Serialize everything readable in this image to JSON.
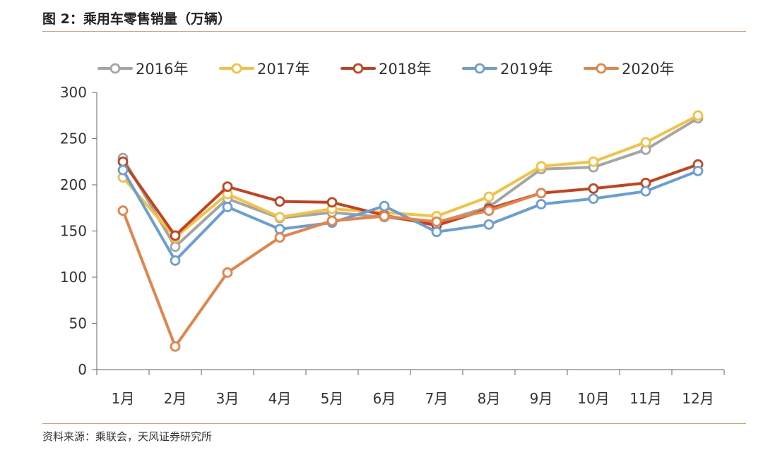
{
  "figure": {
    "title": "图 2：乘用车零售销量（万辆）",
    "source": "资料来源：乘联会，天风证券研究所"
  },
  "chart_data": {
    "type": "line",
    "title": "乘用车零售销量（万辆）",
    "xlabel": "",
    "ylabel": "",
    "ylim": [
      0,
      300
    ],
    "yticks": [
      "0",
      "50",
      "100",
      "150",
      "200",
      "250",
      "300"
    ],
    "grid": false,
    "legend_position": "top",
    "categories": [
      "1月",
      "2月",
      "3月",
      "4月",
      "5月",
      "6月",
      "7月",
      "8月",
      "9月",
      "10月",
      "11月",
      "12月"
    ],
    "series": [
      {
        "name": "2016年",
        "color": "#a5a5a5",
        "values": [
          229,
          133,
          185,
          164,
          170,
          165,
          159,
          176,
          217,
          219,
          238,
          272
        ]
      },
      {
        "name": "2017年",
        "color": "#f4c242",
        "values": [
          208,
          143,
          190,
          165,
          174,
          170,
          166,
          187,
          220,
          225,
          246,
          275
        ]
      },
      {
        "name": "2018年",
        "color": "#c4431e",
        "values": [
          225,
          145,
          198,
          182,
          181,
          167,
          156,
          174,
          191,
          196,
          202,
          222
        ]
      },
      {
        "name": "2019年",
        "color": "#6a9fd6",
        "values": [
          216,
          118,
          176,
          152,
          159,
          177,
          149,
          157,
          179,
          185,
          193,
          215
        ]
      },
      {
        "name": "2020年",
        "color": "#e6834a",
        "values": [
          172,
          25,
          105,
          143,
          161,
          166,
          160,
          172,
          191,
          null,
          null,
          null
        ]
      }
    ]
  }
}
